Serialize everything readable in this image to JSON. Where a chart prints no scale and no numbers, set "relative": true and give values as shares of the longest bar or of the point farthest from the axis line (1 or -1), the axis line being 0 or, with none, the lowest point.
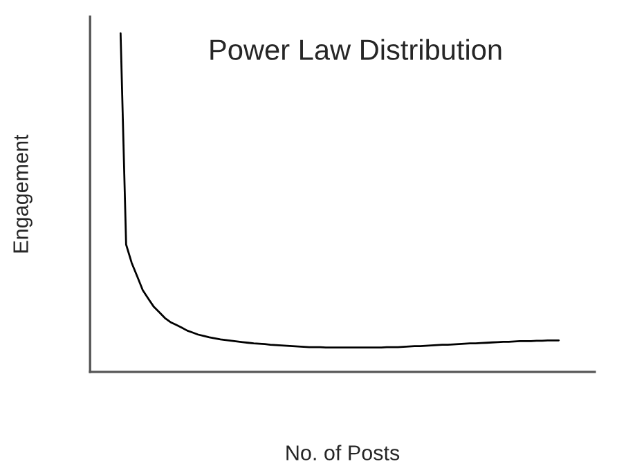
{
  "chart_data": {
    "type": "line",
    "title": "Power Law Distribution",
    "xlabel": "No. of Posts",
    "ylabel": "Engagement",
    "relative": true,
    "legend": false,
    "categories": [
      null,
      null,
      null,
      null,
      null,
      null,
      null,
      null,
      null,
      null,
      null,
      null,
      null,
      null,
      null,
      null,
      null,
      null,
      null,
      null,
      null,
      null,
      null,
      null,
      null,
      null,
      null,
      null,
      null,
      null,
      null,
      null,
      null,
      null,
      null,
      null,
      null,
      null,
      null,
      null,
      null,
      null,
      null,
      null,
      null,
      null,
      null,
      null,
      null,
      null,
      null,
      null,
      null,
      null,
      null,
      null,
      null,
      null,
      null,
      null,
      null,
      null,
      null,
      null,
      null,
      null,
      null,
      null,
      null,
      null,
      null,
      null,
      null,
      null,
      null,
      null,
      null,
      null,
      null,
      null
    ],
    "series": [
      {
        "color": "#000000",
        "values": [
          1,
          0.376,
          0.322,
          0.282,
          0.241,
          0.216,
          0.192,
          0.176,
          0.159,
          0.147,
          0.139,
          0.131,
          0.122,
          0.116,
          0.11,
          0.106,
          0.102,
          0.099,
          0.096,
          0.094,
          0.092,
          0.09,
          0.088,
          0.086,
          0.084,
          0.083,
          0.082,
          0.08,
          0.079,
          0.078,
          0.077,
          0.076,
          0.075,
          0.074,
          0.073,
          0.073,
          0.073,
          0.072,
          0.072,
          0.072,
          0.072,
          0.072,
          0.072,
          0.072,
          0.072,
          0.072,
          0.072,
          0.072,
          0.073,
          0.073,
          0.073,
          0.074,
          0.075,
          0.076,
          0.076,
          0.077,
          0.078,
          0.079,
          0.08,
          0.08,
          0.081,
          0.082,
          0.083,
          0.084,
          0.084,
          0.085,
          0.086,
          0.087,
          0.088,
          0.089,
          0.089,
          0.09,
          0.091,
          0.091,
          0.091,
          0.092,
          0.092,
          0.093,
          0.093,
          0.093
        ]
      }
    ]
  }
}
